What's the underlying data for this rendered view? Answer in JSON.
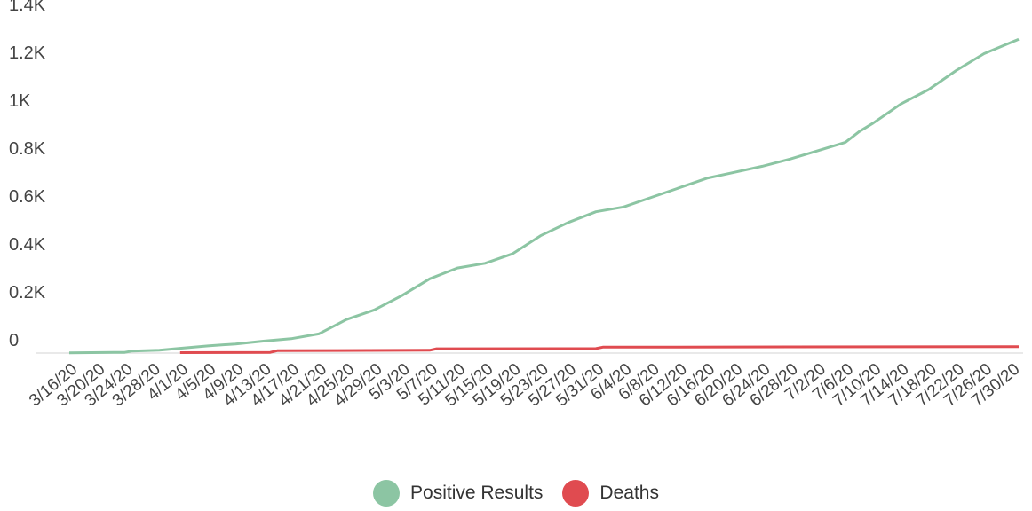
{
  "chart_data": {
    "type": "line",
    "title": "",
    "xlabel": "",
    "ylabel": "",
    "ylim": [
      0,
      1400
    ],
    "y_ticks": [
      {
        "value": 0,
        "label": "0"
      },
      {
        "value": 200,
        "label": "0.2K"
      },
      {
        "value": 400,
        "label": "0.4K"
      },
      {
        "value": 600,
        "label": "0.6K"
      },
      {
        "value": 800,
        "label": "0.8K"
      },
      {
        "value": 1000,
        "label": "1K"
      },
      {
        "value": 1200,
        "label": "1.2K"
      },
      {
        "value": 1400,
        "label": "1.4K"
      }
    ],
    "x_start": "3/16/20",
    "x_end": "7/31/20",
    "x_tick_labels": [
      "3/16/20",
      "3/20/20",
      "3/24/20",
      "3/28/20",
      "4/1/20",
      "4/5/20",
      "4/9/20",
      "4/13/20",
      "4/17/20",
      "4/21/20",
      "4/25/20",
      "4/29/20",
      "5/3/20",
      "5/7/20",
      "5/11/20",
      "5/15/20",
      "5/19/20",
      "5/23/20",
      "5/27/20",
      "5/31/20",
      "6/4/20",
      "6/8/20",
      "6/12/20",
      "6/16/20",
      "6/20/20",
      "6/24/20",
      "6/28/20",
      "7/2/20",
      "7/6/20",
      "7/10/20",
      "7/14/20",
      "7/18/20",
      "7/22/20",
      "7/26/20",
      "7/30/20"
    ],
    "grid": false,
    "legend_position": "bottom",
    "series": [
      {
        "name": "Positive Results",
        "color": "#8cc5a3",
        "points": [
          [
            "3/16/20",
            1
          ],
          [
            "3/24/20",
            3
          ],
          [
            "3/25/20",
            8
          ],
          [
            "3/29/20",
            12
          ],
          [
            "4/1/20",
            20
          ],
          [
            "4/5/20",
            30
          ],
          [
            "4/9/20",
            38
          ],
          [
            "4/13/20",
            50
          ],
          [
            "4/17/20",
            60
          ],
          [
            "4/21/20",
            80
          ],
          [
            "4/25/20",
            140
          ],
          [
            "4/29/20",
            180
          ],
          [
            "5/3/20",
            240
          ],
          [
            "5/7/20",
            310
          ],
          [
            "5/11/20",
            355
          ],
          [
            "5/15/20",
            375
          ],
          [
            "5/19/20",
            415
          ],
          [
            "5/23/20",
            490
          ],
          [
            "5/27/20",
            545
          ],
          [
            "5/31/20",
            590
          ],
          [
            "6/4/20",
            610
          ],
          [
            "6/8/20",
            650
          ],
          [
            "6/12/20",
            690
          ],
          [
            "6/16/20",
            730
          ],
          [
            "6/20/20",
            755
          ],
          [
            "6/24/20",
            780
          ],
          [
            "6/28/20",
            810
          ],
          [
            "7/2/20",
            845
          ],
          [
            "7/6/20",
            880
          ],
          [
            "7/8/20",
            925
          ],
          [
            "7/10/20",
            960
          ],
          [
            "7/14/20",
            1040
          ],
          [
            "7/18/20",
            1100
          ],
          [
            "7/22/20",
            1180
          ],
          [
            "7/26/20",
            1250
          ],
          [
            "7/31/20",
            1310
          ]
        ]
      },
      {
        "name": "Deaths",
        "color": "#e04b50",
        "points": [
          [
            "4/1/20",
            2
          ],
          [
            "4/14/20",
            3
          ],
          [
            "4/15/20",
            10
          ],
          [
            "5/7/20",
            12
          ],
          [
            "5/8/20",
            18
          ],
          [
            "5/31/20",
            19
          ],
          [
            "6/1/20",
            25
          ],
          [
            "7/31/20",
            27
          ]
        ]
      }
    ]
  }
}
